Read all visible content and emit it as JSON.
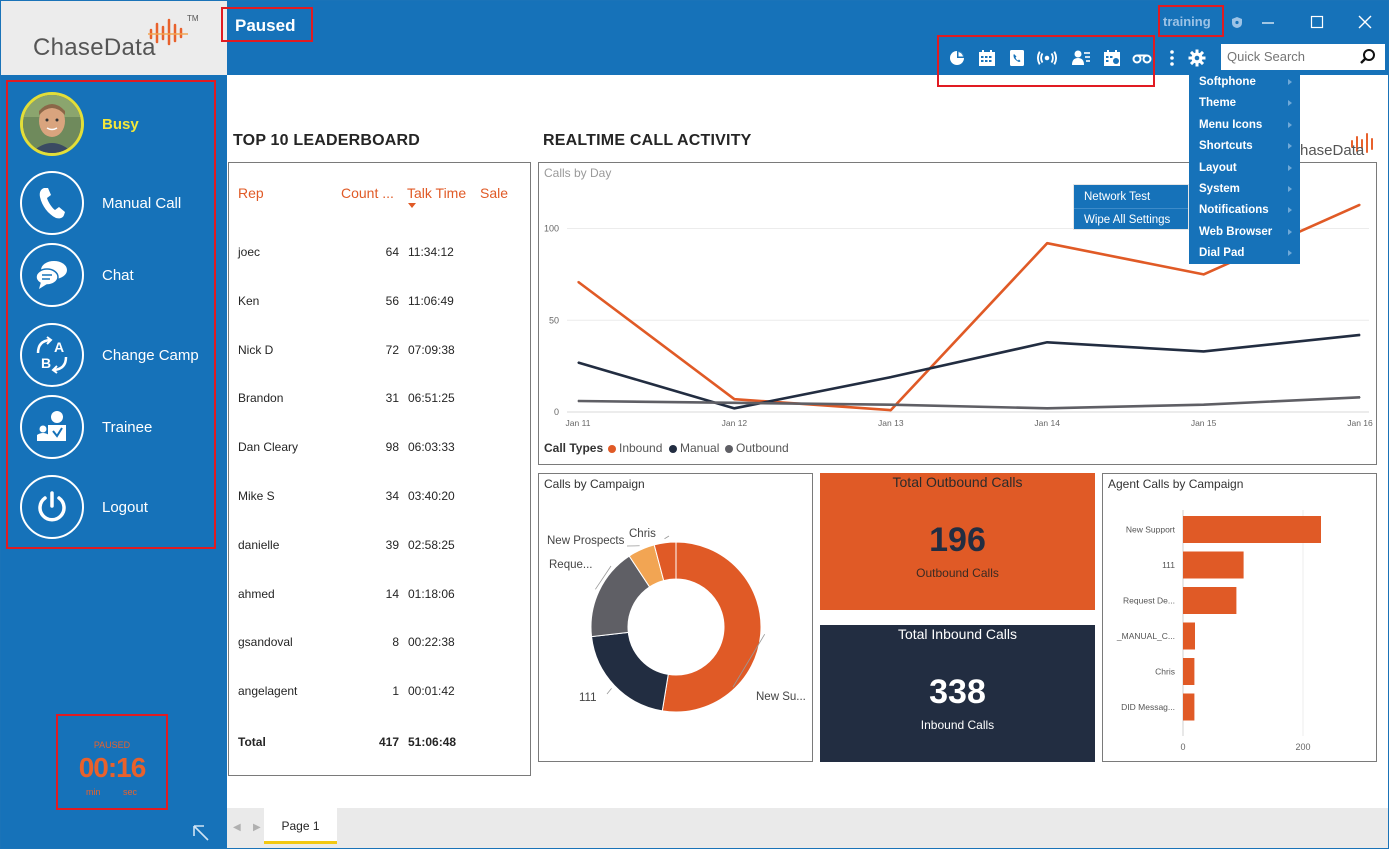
{
  "sidebar": {
    "logo_text": "ChaseData",
    "logo_tm": "TM",
    "status": "Busy",
    "nav": [
      {
        "label": "Manual Call",
        "icon": "phone-icon"
      },
      {
        "label": "Chat",
        "icon": "chat-bubbles-icon"
      },
      {
        "label": "Change Camp",
        "icon": "switch-campaign-icon"
      },
      {
        "label": "Trainee",
        "icon": "trainee-icon"
      },
      {
        "label": "Logout",
        "icon": "power-icon"
      }
    ],
    "timer": {
      "state": "PAUSED",
      "value": "00:16",
      "min_label": "min",
      "sec_label": "sec"
    }
  },
  "header": {
    "title": "Paused",
    "training_label": "training",
    "search_placeholder": "Quick Search",
    "toolbar_icons": [
      "pie-chart-icon",
      "calendar-icon",
      "phone-book-icon",
      "broadcast-icon",
      "contacts-icon",
      "schedule-icon",
      "voicemail-icon"
    ]
  },
  "settings_menu": {
    "items": [
      "Softphone",
      "Theme",
      "Menu Icons",
      "Shortcuts",
      "Layout",
      "System",
      "Notifications",
      "Web Browser",
      "Dial Pad"
    ],
    "submenu": [
      "Network Test",
      "Wipe All Settings"
    ]
  },
  "leaderboard": {
    "title": "TOP 10 LEADERBOARD",
    "columns": [
      "Rep",
      "Count ...",
      "Talk Time",
      "Sale"
    ],
    "rows": [
      {
        "rep": "joec",
        "count": "64",
        "time": "11:34:12"
      },
      {
        "rep": "Ken",
        "count": "56",
        "time": "11:06:49"
      },
      {
        "rep": "Nick D",
        "count": "72",
        "time": "07:09:38"
      },
      {
        "rep": "Brandon",
        "count": "31",
        "time": "06:51:25"
      },
      {
        "rep": "Dan Cleary",
        "count": "98",
        "time": "06:03:33"
      },
      {
        "rep": "Mike S",
        "count": "34",
        "time": "03:40:20"
      },
      {
        "rep": "danielle",
        "count": "39",
        "time": "02:58:25"
      },
      {
        "rep": "ahmed",
        "count": "14",
        "time": "01:18:06"
      },
      {
        "rep": "gsandoval",
        "count": "8",
        "time": "00:22:38"
      },
      {
        "rep": "angelagent",
        "count": "1",
        "time": "00:01:42"
      }
    ],
    "total": {
      "label": "Total",
      "count": "417",
      "time": "51:06:48"
    }
  },
  "activity": {
    "title": "REALTIME CALL ACTIVITY",
    "logo_text": "haseData"
  },
  "colors": {
    "brand_blue": "#1672b9",
    "inbound": "#e05a26",
    "manual": "#222d41",
    "outbound": "#5f5f65",
    "dark_navy": "#222d41",
    "highlight_red": "#e11b22"
  },
  "chart_data": [
    {
      "type": "line",
      "title": "Calls by Day",
      "x": [
        "Jan 11",
        "Jan 12",
        "Jan 13",
        "Jan 14",
        "Jan 15",
        "Jan 16"
      ],
      "ylim": [
        0,
        115
      ],
      "yticks": [
        0,
        50,
        100
      ],
      "legend_title": "Call Types",
      "series": [
        {
          "name": "Inbound",
          "values": [
            71,
            7,
            1,
            92,
            75,
            113
          ]
        },
        {
          "name": "Manual",
          "values": [
            27,
            2,
            19,
            38,
            33,
            42
          ]
        },
        {
          "name": "Outbound",
          "values": [
            6,
            5,
            4,
            2,
            4,
            8
          ]
        }
      ]
    },
    {
      "type": "pie",
      "title": "Calls by Campaign",
      "labels": [
        "New Su...",
        "111",
        "Reque...",
        "New Prospects",
        "Chris"
      ],
      "values": [
        51,
        20,
        17,
        5,
        4
      ],
      "colors": [
        "#e05a26",
        "#222d41",
        "#5f5f65",
        "#f2a553",
        "#e05a26"
      ]
    },
    {
      "type": "kpi",
      "title": "Total Outbound Calls",
      "value": 196,
      "label": "Outbound Calls"
    },
    {
      "type": "kpi",
      "title": "Total Inbound Calls",
      "value": 338,
      "label": "Inbound Calls"
    },
    {
      "type": "bar",
      "orientation": "horizontal",
      "title": "Agent Calls by Campaign",
      "categories": [
        "New Support",
        "111",
        "Request De...",
        "_MANUAL_C...",
        "Chris",
        "DID Messag..."
      ],
      "values": [
        230,
        101,
        89,
        20,
        19,
        19
      ],
      "xticks": [
        0,
        200
      ],
      "xlim": [
        0,
        300
      ]
    }
  ],
  "page_tab": "Page 1"
}
